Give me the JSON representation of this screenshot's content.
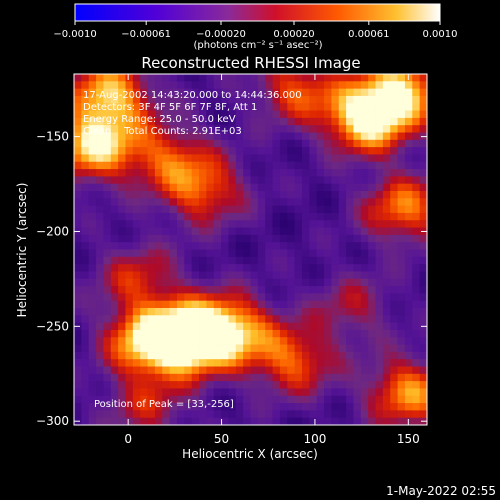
{
  "chart_data": {
    "type": "heatmap",
    "title": "Reconstructed RHESSI Image",
    "xlabel": "Heliocentric X (arcsec)",
    "ylabel": "Heliocentric Y (arcsec)",
    "xlim": [
      -29,
      160
    ],
    "ylim": [
      -302,
      -117
    ],
    "x_ticks": [
      0,
      50,
      100,
      150
    ],
    "y_ticks": [
      -150,
      -200,
      -250,
      -300
    ],
    "colorbar": {
      "unit_label": "(photons cm⁻² s⁻¹ asec⁻²)",
      "range": [
        -0.001,
        0.001
      ],
      "tick_values": [
        -0.001,
        -0.00061,
        -0.0002,
        0.0002,
        0.00061,
        0.001
      ],
      "tick_labels": [
        "−0.0010",
        "−0.00061",
        "−0.00020",
        "0.00020",
        "0.00061",
        "0.0010"
      ],
      "colors": [
        "#0000ff",
        "#6a00c0",
        "#7a2aa0",
        "#c8001a",
        "#ff4a00",
        "#ffa000",
        "#ffff80",
        "#ffffff"
      ]
    },
    "annotations": [
      "17-Aug-2002 14:43:20.000 to 14:44:36.000",
      "Detectors: 3F 4F 5F 6F 7F 8F, Att 1",
      "Energy Range: 25.0 - 50.0 keV",
      "Clean    Total Counts: 2.91E+03"
    ],
    "peak_label": "Position of Peak = [33,-256]",
    "hotspots": [
      {
        "x": 33,
        "y": -256,
        "intensity": 1.0
      },
      {
        "x": 10,
        "y": -258,
        "intensity": 0.75
      },
      {
        "x": 55,
        "y": -252,
        "intensity": 0.7
      },
      {
        "x": 88,
        "y": -268,
        "intensity": 0.55
      },
      {
        "x": -18,
        "y": -155,
        "intensity": 0.8
      },
      {
        "x": -10,
        "y": -128,
        "intensity": 0.75
      },
      {
        "x": 20,
        "y": -160,
        "intensity": 0.45
      },
      {
        "x": 40,
        "y": -178,
        "intensity": 0.55
      },
      {
        "x": 128,
        "y": -140,
        "intensity": 0.95
      },
      {
        "x": 148,
        "y": -125,
        "intensity": 0.7
      },
      {
        "x": 90,
        "y": -125,
        "intensity": 0.5
      },
      {
        "x": 148,
        "y": -188,
        "intensity": 0.6
      },
      {
        "x": 5,
        "y": -225,
        "intensity": 0.4
      },
      {
        "x": 150,
        "y": -285,
        "intensity": 0.65
      },
      {
        "x": 10,
        "y": -292,
        "intensity": 0.35
      },
      {
        "x": 120,
        "y": -240,
        "intensity": 0.3
      }
    ]
  },
  "footer_timestamp": "1-May-2022 02:55"
}
